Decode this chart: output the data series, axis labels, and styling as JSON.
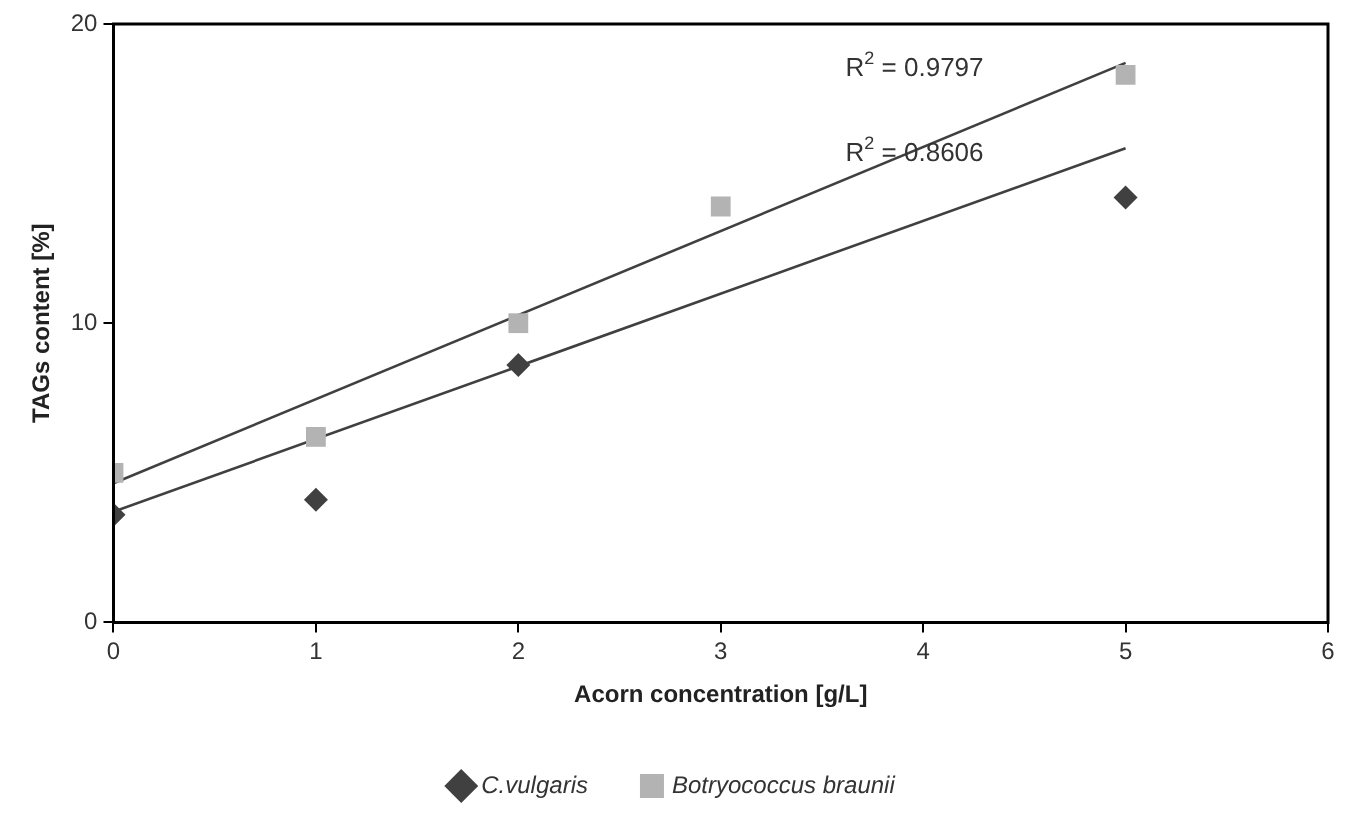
{
  "chart_data": {
    "type": "scatter",
    "xlabel": "Acorn concentration [g/L]",
    "ylabel": "TAGs content [%]",
    "xlim": [
      0,
      6
    ],
    "xticks": [
      0,
      1,
      2,
      3,
      4,
      5,
      6
    ],
    "ylim": [
      0,
      20
    ],
    "yticks": [
      0,
      10,
      20
    ],
    "grid": false,
    "legend": "bottom",
    "series": [
      {
        "name": "C.vulgaris",
        "color": "#404040",
        "marker": "diamond",
        "x": [
          0,
          1,
          2,
          5
        ],
        "values": [
          3.6,
          4.1,
          8.6,
          14.2
        ]
      },
      {
        "name": "Botryococcus braunii",
        "color": "#b3b3b3",
        "marker": "square",
        "x": [
          0,
          1,
          2,
          3,
          5
        ],
        "values": [
          5.0,
          6.2,
          10.0,
          13.9,
          18.3
        ]
      },
      {
        "type": "line",
        "color": "#404040",
        "marker": "none",
        "x": [
          0,
          5
        ],
        "values": [
          4.65,
          18.7
        ]
      },
      {
        "type": "line",
        "color": "#404040",
        "marker": "none",
        "x": [
          0,
          5
        ],
        "values": [
          3.7,
          15.85
        ]
      }
    ],
    "annotations": [
      "R$^{2}$ = 0.9797",
      "R$^{2}$ = 0.8606"
    ]
  }
}
